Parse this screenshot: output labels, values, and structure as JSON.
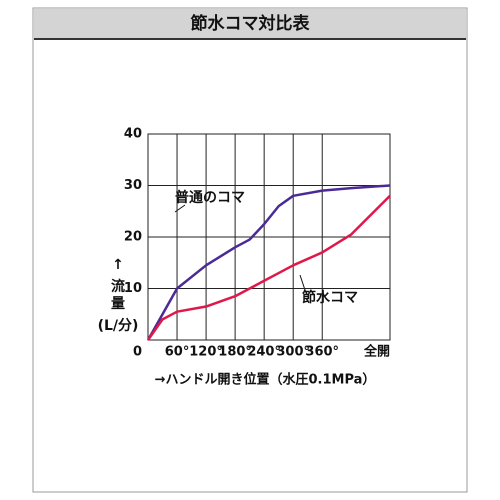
{
  "chart_data": {
    "type": "line",
    "title": "節水コマ対比表",
    "xlabel": "→ハンドル開き位置（水圧0.1MPa）",
    "ylabel": [
      "↑",
      "流",
      "量",
      "(L/分)"
    ],
    "xlim": [
      0,
      500
    ],
    "ylim": [
      0,
      40
    ],
    "xticks": [
      {
        "value": 0,
        "label": "0"
      },
      {
        "value": 60,
        "label": "60°"
      },
      {
        "value": 120,
        "label": "120°"
      },
      {
        "value": 180,
        "label": "180°"
      },
      {
        "value": 240,
        "label": "240°"
      },
      {
        "value": 300,
        "label": "300°"
      },
      {
        "value": 360,
        "label": "360°"
      },
      {
        "value": 500,
        "label": "全開"
      }
    ],
    "yticks": [
      10,
      20,
      30,
      40
    ],
    "grid": true,
    "x": [
      0,
      30,
      60,
      120,
      180,
      210,
      240,
      270,
      300,
      360,
      420,
      500
    ],
    "series": [
      {
        "name": "普通のコマ",
        "color": "#4b2a96",
        "values": [
          0,
          5,
          10,
          14.5,
          18,
          19.5,
          22.5,
          26,
          28,
          29,
          29.5,
          30
        ]
      },
      {
        "name": "節水コマ",
        "color": "#e0184a",
        "values": [
          0,
          4,
          5.5,
          6.5,
          8.5,
          10,
          11.5,
          13,
          14.5,
          17,
          20.5,
          28
        ]
      }
    ]
  }
}
